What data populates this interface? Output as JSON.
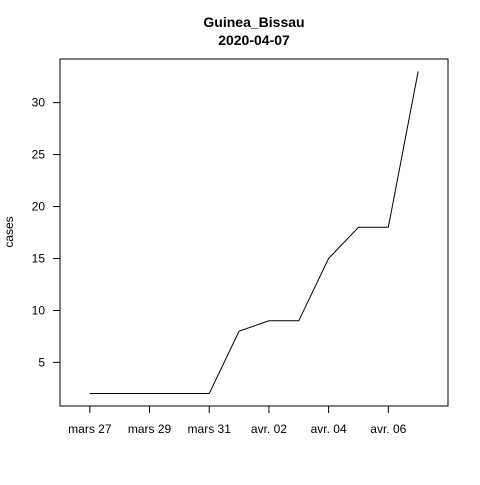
{
  "chart_data": {
    "type": "line",
    "title": "Guinea_Bissau",
    "subtitle": "2020-04-07",
    "xlabel": "",
    "ylabel": "cases",
    "x": [
      "2020-03-27",
      "2020-03-28",
      "2020-03-29",
      "2020-03-30",
      "2020-03-31",
      "2020-04-01",
      "2020-04-02",
      "2020-04-03",
      "2020-04-04",
      "2020-04-05",
      "2020-04-06",
      "2020-04-07"
    ],
    "series": [
      {
        "values": [
          2,
          2,
          2,
          2,
          2,
          8,
          9,
          9,
          15,
          18,
          18,
          33
        ]
      }
    ],
    "x_ticks": [
      {
        "date": "2020-03-27",
        "label": "mars 27"
      },
      {
        "date": "2020-03-29",
        "label": "mars 29"
      },
      {
        "date": "2020-03-31",
        "label": "mars 31"
      },
      {
        "date": "2020-04-02",
        "label": "avr. 02"
      },
      {
        "date": "2020-04-04",
        "label": "avr. 04"
      },
      {
        "date": "2020-04-06",
        "label": "avr. 06"
      }
    ],
    "y_ticks": [
      5,
      10,
      15,
      20,
      25,
      30
    ],
    "xlim": [
      "2020-03-26",
      "2020-04-08"
    ],
    "ylim": [
      0.8,
      34.2
    ],
    "grid": false,
    "line_color": "#000000"
  }
}
